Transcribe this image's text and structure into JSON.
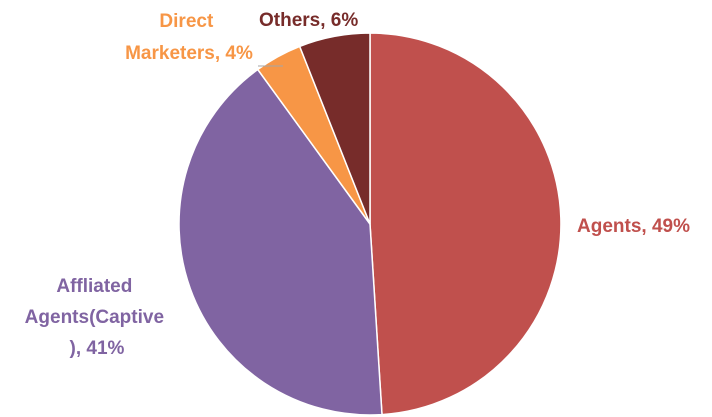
{
  "chart_data": {
    "type": "pie",
    "title": "",
    "legend": "none",
    "slices": [
      {
        "name": "Agents",
        "value": 49,
        "label": "Agents, 49%",
        "color": "#C0504D"
      },
      {
        "name": "Affliated Agents(Captive)",
        "value": 41,
        "label_lines": [
          "Affliated",
          "Agents(Captive",
          "), 41%"
        ],
        "color": "#8064A2"
      },
      {
        "name": "Direct Marketers",
        "value": 4,
        "label_lines": [
          "Direct",
          "Marketers, 4%"
        ],
        "color": "#F79646"
      },
      {
        "name": "Others",
        "value": 6,
        "label": "Others, 6%",
        "color": "#772C2A"
      }
    ]
  }
}
